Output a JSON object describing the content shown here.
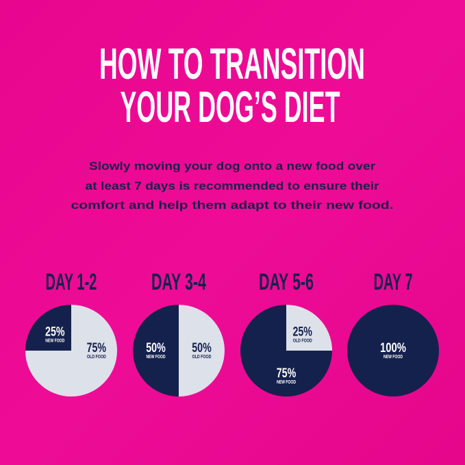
{
  "title": {
    "line1": "HOW TO TRANSITION",
    "line2": "YOUR DOG’S DIET"
  },
  "intro": {
    "line1": "Slowly moving your dog onto a new food over",
    "line2": "at least 7 days is recommended to ensure their",
    "line3": "comfort and help them adapt to their new food."
  },
  "colors": {
    "background": "#e5078e",
    "new_food": "#15214d",
    "old_food": "#dde1ea",
    "title": "#ffffff"
  },
  "chart_data": [
    {
      "type": "pie",
      "title": "DAY 1-2",
      "slices": [
        {
          "label": "NEW FOOD",
          "value": 25,
          "text": "25%"
        },
        {
          "label": "OLD FOOD",
          "value": 75,
          "text": "75%"
        }
      ]
    },
    {
      "type": "pie",
      "title": "DAY 3-4",
      "slices": [
        {
          "label": "NEW FOOD",
          "value": 50,
          "text": "50%"
        },
        {
          "label": "OLD FOOD",
          "value": 50,
          "text": "50%"
        }
      ]
    },
    {
      "type": "pie",
      "title": "DAY 5-6",
      "slices": [
        {
          "label": "NEW FOOD",
          "value": 75,
          "text": "75%"
        },
        {
          "label": "OLD FOOD",
          "value": 25,
          "text": "25%"
        }
      ]
    },
    {
      "type": "pie",
      "title": "DAY 7",
      "slices": [
        {
          "label": "NEW FOOD",
          "value": 100,
          "text": "100%"
        }
      ]
    }
  ]
}
